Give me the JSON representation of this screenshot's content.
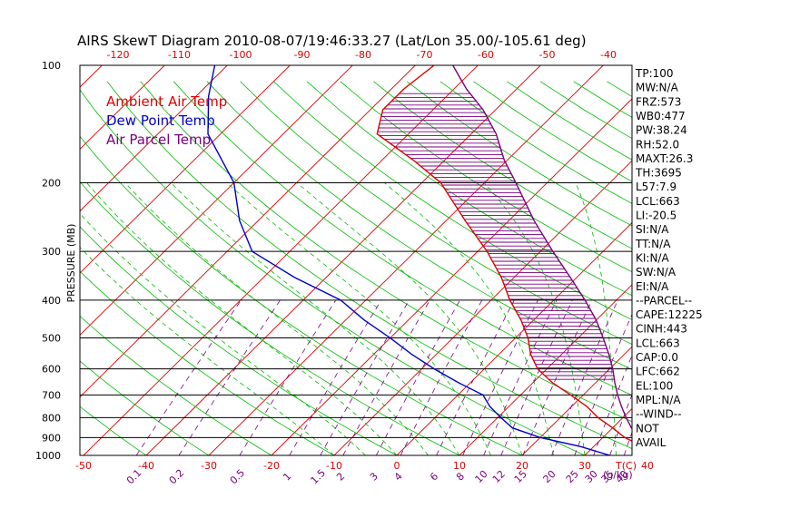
{
  "chart_data": {
    "type": "line",
    "title": "AIRS SkewT Diagram 2010-08-07/19:46:33.27 (Lat/Lon 35.00/-105.61 deg)",
    "ylabel": "PRESSURE (MB)",
    "xlabel_bottom_unit": "T(C)",
    "mixing_ratio_unit": "(g/kg)",
    "pressure_ticks": [
      "100",
      "200",
      "300",
      "400",
      "500",
      "600",
      "700",
      "800",
      "900",
      "1000"
    ],
    "bottom_temp_ticks": [
      "-50",
      "-40",
      "-30",
      "-20",
      "-10",
      "0",
      "10",
      "20",
      "30",
      "40"
    ],
    "top_temp_ticks": [
      "-120",
      "-110",
      "-100",
      "-90",
      "-80",
      "-70",
      "-60",
      "-50",
      "-40"
    ],
    "mixing_ratio_ticks": [
      "0.1",
      "0.2",
      "0.5",
      "1",
      "1.5",
      "2",
      "3",
      "4",
      "6",
      "8",
      "10",
      "12",
      "15",
      "20",
      "25",
      "30",
      "35",
      "40"
    ],
    "legend": [
      {
        "label": "Ambient Air Temp",
        "color": "#dd0000"
      },
      {
        "label": "Dew Point Temp",
        "color": "#0000cc"
      },
      {
        "label": "Air Parcel Temp",
        "color": "#7a0080"
      }
    ],
    "series": [
      {
        "name": "Ambient Air Temp",
        "color": "#dd0000",
        "points": [
          [
            1000,
            41
          ],
          [
            950,
            38
          ],
          [
            900,
            33.5
          ],
          [
            850,
            30
          ],
          [
            800,
            26
          ],
          [
            750,
            22.5
          ],
          [
            700,
            18
          ],
          [
            650,
            13
          ],
          [
            600,
            8.5
          ],
          [
            550,
            5
          ],
          [
            500,
            2
          ],
          [
            450,
            -2
          ],
          [
            400,
            -7
          ],
          [
            350,
            -12
          ],
          [
            300,
            -18.5
          ],
          [
            250,
            -27
          ],
          [
            200,
            -37
          ],
          [
            175,
            -45
          ],
          [
            150,
            -55
          ],
          [
            130,
            -58
          ],
          [
            115,
            -58
          ],
          [
            100,
            -57
          ]
        ]
      },
      {
        "name": "Dew Point Temp",
        "color": "#0000cc",
        "points": [
          [
            1000,
            34
          ],
          [
            950,
            28
          ],
          [
            900,
            20
          ],
          [
            850,
            14
          ],
          [
            800,
            10.5
          ],
          [
            750,
            7
          ],
          [
            700,
            4
          ],
          [
            650,
            -2
          ],
          [
            600,
            -8
          ],
          [
            550,
            -14
          ],
          [
            500,
            -20
          ],
          [
            450,
            -27
          ],
          [
            400,
            -34
          ],
          [
            350,
            -45
          ],
          [
            300,
            -56
          ],
          [
            250,
            -63
          ],
          [
            200,
            -70
          ],
          [
            150,
            -82
          ],
          [
            120,
            -88
          ],
          [
            100,
            -92
          ]
        ]
      },
      {
        "name": "Air Parcel Temp",
        "color": "#7a0080",
        "points": [
          [
            1000,
            42
          ],
          [
            950,
            39
          ],
          [
            900,
            36
          ],
          [
            850,
            33
          ],
          [
            800,
            30.5
          ],
          [
            750,
            28
          ],
          [
            700,
            25.5
          ],
          [
            650,
            23
          ],
          [
            600,
            20.5
          ],
          [
            550,
            17.5
          ],
          [
            500,
            14
          ],
          [
            450,
            10
          ],
          [
            400,
            5
          ],
          [
            350,
            -1
          ],
          [
            300,
            -8
          ],
          [
            250,
            -16
          ],
          [
            200,
            -25
          ],
          [
            175,
            -30.5
          ],
          [
            150,
            -36
          ],
          [
            130,
            -42
          ],
          [
            115,
            -48
          ],
          [
            100,
            -54
          ]
        ]
      }
    ],
    "indices": [
      "TP:100",
      "MW:N/A",
      "FRZ:573",
      "WB0:477",
      "PW:38.24",
      "RH:52.0",
      "MAXT:26.3",
      "TH:3695",
      "L57:7.9",
      "LCL:663",
      "LI:-20.5",
      "SI:N/A",
      "TT:N/A",
      "KI:N/A",
      "SW:N/A",
      "EI:N/A",
      "--PARCEL--",
      "CAPE:12225",
      "CINH:443",
      "LCL:663",
      "CAP:0.0",
      "LFC:662",
      "EL:100",
      "MPL:N/A",
      "--WIND--",
      "NOT",
      "AVAIL"
    ]
  },
  "colors": {
    "isotherm": "#dd0000",
    "dry_adiabat": "#00bb00",
    "moist_adiabat": "#00bb00",
    "mixing_ratio": "#7a0080",
    "isobar": "#000000",
    "hatch": "#7a0080",
    "top_ticks": "#dd0000",
    "bottom_ticks": "#dd0000",
    "mixing_ticks": "#7a0080"
  }
}
